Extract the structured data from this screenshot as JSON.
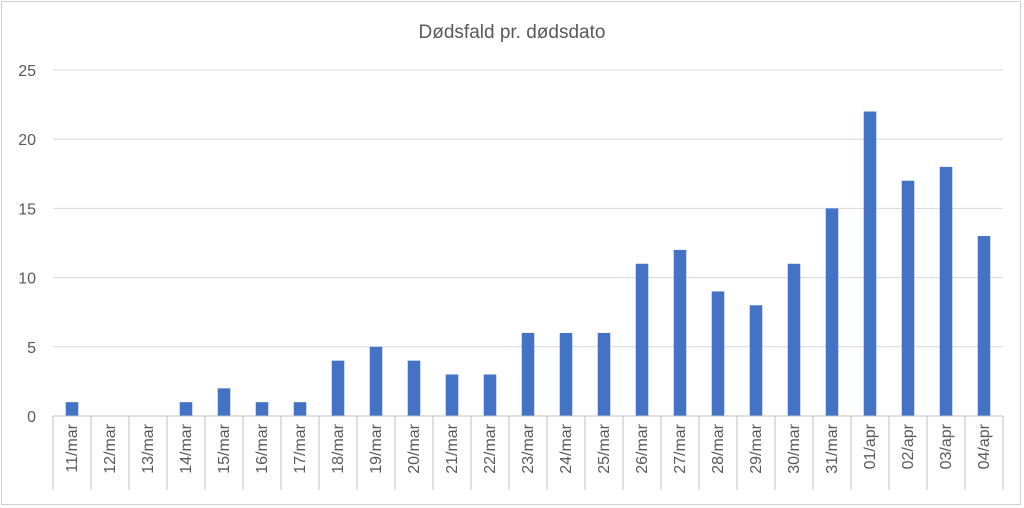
{
  "chart_data": {
    "type": "bar",
    "title": "Dødsfald pr. dødsdato",
    "xlabel": "",
    "ylabel": "",
    "categories": [
      "11/mar",
      "12/mar",
      "13/mar",
      "14/mar",
      "15/mar",
      "16/mar",
      "17/mar",
      "18/mar",
      "19/mar",
      "20/mar",
      "21/mar",
      "22/mar",
      "23/mar",
      "24/mar",
      "25/mar",
      "26/mar",
      "27/mar",
      "28/mar",
      "29/mar",
      "30/mar",
      "31/mar",
      "01/apr",
      "02/apr",
      "03/apr",
      "04/apr"
    ],
    "values": [
      1,
      0,
      0,
      1,
      2,
      1,
      1,
      4,
      5,
      4,
      3,
      3,
      6,
      6,
      6,
      11,
      12,
      9,
      8,
      11,
      15,
      22,
      17,
      18,
      13
    ],
    "ylim": [
      0,
      25
    ],
    "yticks": [
      0,
      5,
      10,
      15,
      20,
      25
    ],
    "grid": true,
    "legend": "none",
    "bar_color": "#4472c4"
  }
}
